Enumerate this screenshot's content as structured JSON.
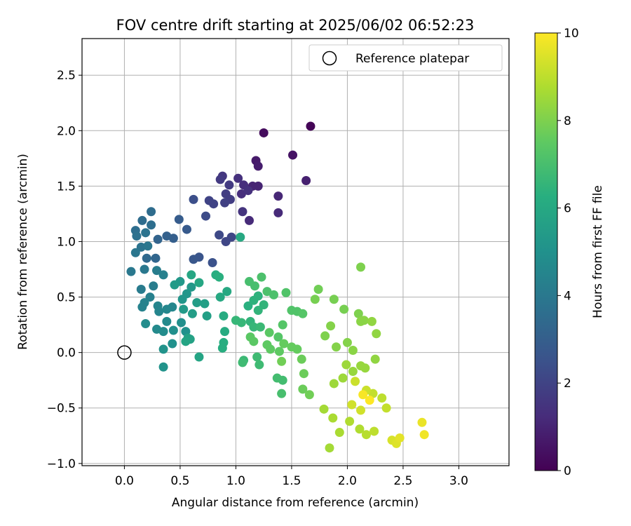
{
  "chart_data": {
    "type": "scatter",
    "title": "FOV centre drift starting at 2025/06/02 06:52:23",
    "xlabel": "Angular distance from reference (arcmin)",
    "ylabel": "Rotation from reference (arcmin)",
    "xlim": [
      -0.38,
      3.45
    ],
    "ylim": [
      -1.02,
      2.83
    ],
    "xticks": [
      "0.0",
      "0.5",
      "1.0",
      "1.5",
      "2.0",
      "2.5",
      "3.0"
    ],
    "xtick_values": [
      0.0,
      0.5,
      1.0,
      1.5,
      2.0,
      2.5,
      3.0
    ],
    "yticks": [
      "−1.0",
      "−0.5",
      "0.0",
      "0.5",
      "1.0",
      "1.5",
      "2.0",
      "2.5"
    ],
    "ytick_values": [
      -1.0,
      -0.5,
      0.0,
      0.5,
      1.0,
      1.5,
      2.0,
      2.5
    ],
    "grid": true,
    "legend": {
      "position": "top-right",
      "label": "Reference platepar"
    },
    "reference_point": {
      "x": 0.0,
      "y": 0.0
    },
    "colorbar": {
      "label": "Hours from first FF file",
      "range": [
        0,
        10
      ],
      "ticks": [
        "0",
        "2",
        "4",
        "6",
        "8",
        "10"
      ],
      "tick_values": [
        0,
        2,
        4,
        6,
        8,
        10
      ],
      "colormap": "viridis"
    },
    "points": [
      [
        1.67,
        2.04,
        0.1
      ],
      [
        1.25,
        1.98,
        0.3
      ],
      [
        1.51,
        1.78,
        0.5
      ],
      [
        1.18,
        1.73,
        0.7
      ],
      [
        1.2,
        1.68,
        0.8
      ],
      [
        1.63,
        1.55,
        0.9
      ],
      [
        1.15,
        1.5,
        1.0
      ],
      [
        1.2,
        1.5,
        1.0
      ],
      [
        1.38,
        1.41,
        1.1
      ],
      [
        1.38,
        1.26,
        1.2
      ],
      [
        1.12,
        1.19,
        1.2
      ],
      [
        1.07,
        1.51,
        1.3
      ],
      [
        1.05,
        1.43,
        1.3
      ],
      [
        1.02,
        1.57,
        1.4
      ],
      [
        1.11,
        1.46,
        1.4
      ],
      [
        1.06,
        1.27,
        1.5
      ],
      [
        0.88,
        1.59,
        1.6
      ],
      [
        0.86,
        1.56,
        1.7
      ],
      [
        0.94,
        1.51,
        1.7
      ],
      [
        0.91,
        1.43,
        1.8
      ],
      [
        0.95,
        1.38,
        1.8
      ],
      [
        0.9,
        1.35,
        1.9
      ],
      [
        0.8,
        1.34,
        2.0
      ],
      [
        0.76,
        1.37,
        2.0
      ],
      [
        0.96,
        1.04,
        2.1
      ],
      [
        0.91,
        1.0,
        2.1
      ],
      [
        0.85,
        1.06,
        2.2
      ],
      [
        0.73,
        1.23,
        2.3
      ],
      [
        0.62,
        1.38,
        2.4
      ],
      [
        0.79,
        0.81,
        2.5
      ],
      [
        0.67,
        0.86,
        2.6
      ],
      [
        0.62,
        0.84,
        2.7
      ],
      [
        0.56,
        1.11,
        2.8
      ],
      [
        0.49,
        1.2,
        2.9
      ],
      [
        0.44,
        1.03,
        3.0
      ],
      [
        0.38,
        1.05,
        3.1
      ],
      [
        0.3,
        1.02,
        3.2
      ],
      [
        0.28,
        0.85,
        3.3
      ],
      [
        0.2,
        0.85,
        3.4
      ],
      [
        0.24,
        1.27,
        3.5
      ],
      [
        0.16,
        1.19,
        3.5
      ],
      [
        0.24,
        1.15,
        3.6
      ],
      [
        0.1,
        1.1,
        3.6
      ],
      [
        0.11,
        1.05,
        3.7
      ],
      [
        0.19,
        1.08,
        3.8
      ],
      [
        0.15,
        0.95,
        3.8
      ],
      [
        0.21,
        0.96,
        3.9
      ],
      [
        0.1,
        0.9,
        3.9
      ],
      [
        0.06,
        0.73,
        4.0
      ],
      [
        0.18,
        0.75,
        4.0
      ],
      [
        0.15,
        0.57,
        4.1
      ],
      [
        0.26,
        0.6,
        4.2
      ],
      [
        0.29,
        0.74,
        4.2
      ],
      [
        0.35,
        0.7,
        4.3
      ],
      [
        0.23,
        0.5,
        4.3
      ],
      [
        0.18,
        0.45,
        4.4
      ],
      [
        0.16,
        0.41,
        4.4
      ],
      [
        0.3,
        0.42,
        4.5
      ],
      [
        0.31,
        0.37,
        4.5
      ],
      [
        0.38,
        0.39,
        4.6
      ],
      [
        0.43,
        0.41,
        4.6
      ],
      [
        0.38,
        0.28,
        4.7
      ],
      [
        0.29,
        0.21,
        4.7
      ],
      [
        0.19,
        0.26,
        4.8
      ],
      [
        0.35,
        0.19,
        4.8
      ],
      [
        0.44,
        0.2,
        4.9
      ],
      [
        0.51,
        0.27,
        4.9
      ],
      [
        0.55,
        0.19,
        5.0
      ],
      [
        0.43,
        0.08,
        5.0
      ],
      [
        0.35,
        0.03,
        5.1
      ],
      [
        0.35,
        -0.13,
        5.1
      ],
      [
        0.52,
        0.48,
        5.2
      ],
      [
        0.56,
        0.53,
        5.2
      ],
      [
        0.5,
        0.64,
        5.3
      ],
      [
        0.6,
        0.59,
        5.3
      ],
      [
        0.45,
        0.61,
        5.4
      ],
      [
        0.53,
        0.39,
        5.4
      ],
      [
        0.61,
        0.35,
        5.5
      ],
      [
        0.65,
        0.45,
        5.5
      ],
      [
        0.72,
        0.44,
        5.6
      ],
      [
        0.74,
        0.33,
        5.6
      ],
      [
        0.57,
        0.13,
        5.7
      ],
      [
        0.59,
        0.12,
        5.7
      ],
      [
        0.67,
        -0.04,
        5.8
      ],
      [
        0.55,
        0.1,
        5.8
      ],
      [
        0.6,
        0.7,
        5.9
      ],
      [
        0.67,
        0.63,
        5.9
      ],
      [
        0.86,
        0.5,
        6.0
      ],
      [
        0.92,
        0.55,
        6.0
      ],
      [
        1.04,
        1.04,
        6.0
      ],
      [
        0.89,
        0.33,
        6.1
      ],
      [
        0.9,
        0.19,
        6.1
      ],
      [
        0.89,
        0.09,
        6.2
      ],
      [
        0.88,
        0.04,
        6.2
      ],
      [
        0.82,
        0.7,
        6.2
      ],
      [
        0.85,
        0.68,
        6.3
      ],
      [
        1.11,
        0.42,
        6.3
      ],
      [
        1.16,
        0.47,
        6.4
      ],
      [
        1.2,
        0.51,
        6.4
      ],
      [
        1.25,
        0.43,
        6.5
      ],
      [
        1.2,
        0.38,
        6.5
      ],
      [
        1.13,
        0.28,
        6.5
      ],
      [
        1.05,
        0.27,
        6.6
      ],
      [
        1.0,
        0.29,
        6.6
      ],
      [
        1.16,
        0.23,
        6.6
      ],
      [
        1.22,
        0.23,
        6.7
      ],
      [
        1.07,
        -0.07,
        6.7
      ],
      [
        1.06,
        -0.09,
        6.8
      ],
      [
        1.19,
        -0.04,
        6.8
      ],
      [
        1.21,
        -0.11,
        6.8
      ],
      [
        1.37,
        -0.23,
        6.9
      ],
      [
        1.42,
        -0.25,
        6.9
      ],
      [
        1.41,
        -0.37,
        7.0
      ],
      [
        1.12,
        0.64,
        7.0
      ],
      [
        1.17,
        0.6,
        7.0
      ],
      [
        1.23,
        0.68,
        7.1
      ],
      [
        1.28,
        0.55,
        7.1
      ],
      [
        1.34,
        0.52,
        7.1
      ],
      [
        1.45,
        0.54,
        7.2
      ],
      [
        1.5,
        0.38,
        7.2
      ],
      [
        1.55,
        0.37,
        7.2
      ],
      [
        1.6,
        0.35,
        7.3
      ],
      [
        1.42,
        0.25,
        7.3
      ],
      [
        1.38,
        0.14,
        7.3
      ],
      [
        1.3,
        0.18,
        7.4
      ],
      [
        1.13,
        0.14,
        7.4
      ],
      [
        1.16,
        0.1,
        7.4
      ],
      [
        1.28,
        0.07,
        7.5
      ],
      [
        1.31,
        0.03,
        7.5
      ],
      [
        1.39,
        0.01,
        7.5
      ],
      [
        1.43,
        0.08,
        7.6
      ],
      [
        1.5,
        0.05,
        7.6
      ],
      [
        1.55,
        0.03,
        7.6
      ],
      [
        1.59,
        -0.06,
        7.7
      ],
      [
        1.61,
        -0.19,
        7.7
      ],
      [
        1.6,
        -0.33,
        7.7
      ],
      [
        1.66,
        -0.38,
        7.8
      ],
      [
        1.41,
        -0.08,
        7.8
      ],
      [
        1.74,
        0.57,
        7.8
      ],
      [
        1.71,
        0.48,
        7.9
      ],
      [
        1.88,
        0.48,
        7.9
      ],
      [
        1.97,
        0.39,
        7.9
      ],
      [
        2.12,
        0.77,
        8.0
      ],
      [
        2.1,
        0.35,
        8.0
      ],
      [
        1.8,
        0.15,
        8.0
      ],
      [
        1.85,
        0.24,
        8.1
      ],
      [
        1.9,
        0.05,
        8.1
      ],
      [
        2.0,
        0.09,
        8.1
      ],
      [
        2.05,
        0.02,
        8.2
      ],
      [
        2.12,
        0.28,
        8.2
      ],
      [
        2.15,
        0.29,
        8.2
      ],
      [
        2.22,
        0.28,
        8.3
      ],
      [
        2.26,
        0.17,
        8.3
      ],
      [
        2.25,
        -0.06,
        8.3
      ],
      [
        2.16,
        -0.14,
        8.4
      ],
      [
        2.12,
        -0.12,
        8.4
      ],
      [
        2.05,
        -0.17,
        8.4
      ],
      [
        1.99,
        -0.11,
        8.5
      ],
      [
        1.96,
        -0.23,
        8.5
      ],
      [
        1.88,
        -0.28,
        8.5
      ],
      [
        1.79,
        -0.51,
        8.6
      ],
      [
        1.84,
        -0.86,
        8.6
      ],
      [
        1.87,
        -0.59,
        8.7
      ],
      [
        1.93,
        -0.72,
        8.7
      ],
      [
        2.02,
        -0.62,
        8.8
      ],
      [
        2.11,
        -0.69,
        8.8
      ],
      [
        2.17,
        -0.74,
        8.9
      ],
      [
        2.24,
        -0.71,
        9.0
      ],
      [
        2.31,
        -0.41,
        9.0
      ],
      [
        2.35,
        -0.5,
        9.1
      ],
      [
        2.23,
        -0.37,
        9.1
      ],
      [
        2.17,
        -0.34,
        9.2
      ],
      [
        2.07,
        -0.26,
        9.2
      ],
      [
        2.04,
        -0.47,
        9.3
      ],
      [
        2.12,
        -0.52,
        9.3
      ],
      [
        2.4,
        -0.79,
        9.4
      ],
      [
        2.44,
        -0.82,
        9.5
      ],
      [
        2.47,
        -0.77,
        9.6
      ],
      [
        2.67,
        -0.63,
        9.7
      ],
      [
        2.69,
        -0.74,
        9.8
      ],
      [
        2.14,
        -0.38,
        9.9
      ],
      [
        2.2,
        -0.43,
        10.0
      ]
    ]
  }
}
